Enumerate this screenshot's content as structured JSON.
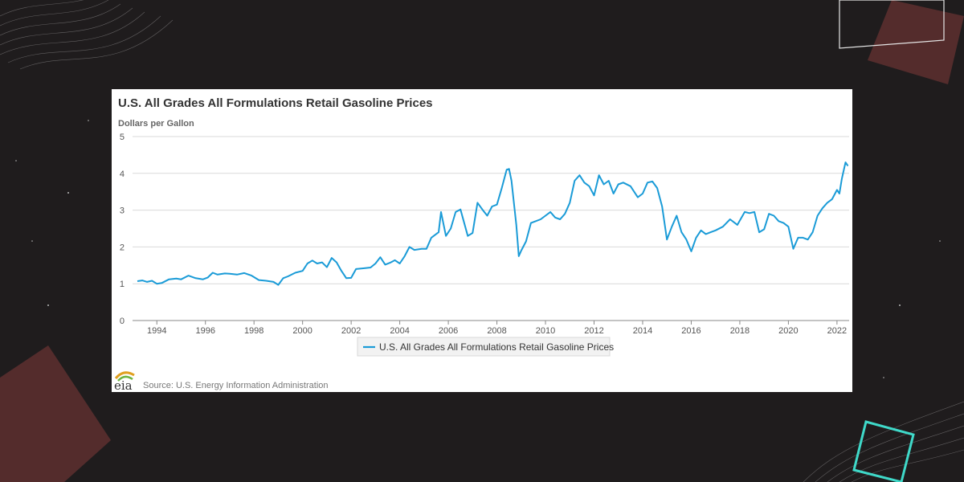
{
  "colors": {
    "background": "#1f1c1d",
    "series": "#1a9bd7",
    "accent_square": "#5a2f2f",
    "teal_square": "#3fd9c9"
  },
  "footer": {
    "source": "Source: U.S. Energy Information Administration",
    "logo_text": "eia"
  },
  "chart_data": {
    "type": "line",
    "title": "U.S. All Grades All Formulations Retail Gasoline Prices",
    "ylabel": "Dollars per Gallon",
    "xlabel": "",
    "ylim": [
      0,
      5
    ],
    "xlim": [
      1993.0,
      2022.5
    ],
    "yticks": [
      "0",
      "1",
      "2",
      "3",
      "4",
      "5"
    ],
    "xticks": [
      "1994",
      "1996",
      "1998",
      "2000",
      "2002",
      "2004",
      "2006",
      "2008",
      "2010",
      "2012",
      "2014",
      "2016",
      "2018",
      "2020",
      "2022"
    ],
    "grid": true,
    "legend": "bottom-center",
    "series": [
      {
        "name": "U.S. All Grades All Formulations Retail Gasoline Prices",
        "x": [
          1993.2,
          1993.4,
          1993.6,
          1993.8,
          1994.0,
          1994.2,
          1994.5,
          1994.8,
          1995.0,
          1995.3,
          1995.6,
          1995.9,
          1996.1,
          1996.3,
          1996.5,
          1996.8,
          1997.0,
          1997.3,
          1997.6,
          1997.9,
          1998.2,
          1998.5,
          1998.8,
          1999.0,
          1999.2,
          1999.4,
          1999.7,
          2000.0,
          2000.2,
          2000.4,
          2000.6,
          2000.8,
          2001.0,
          2001.2,
          2001.4,
          2001.6,
          2001.8,
          2002.0,
          2002.2,
          2002.5,
          2002.8,
          2003.0,
          2003.2,
          2003.4,
          2003.6,
          2003.8,
          2004.0,
          2004.2,
          2004.4,
          2004.6,
          2004.9,
          2005.1,
          2005.3,
          2005.6,
          2005.7,
          2005.9,
          2006.1,
          2006.3,
          2006.5,
          2006.8,
          2007.0,
          2007.2,
          2007.4,
          2007.6,
          2007.8,
          2008.0,
          2008.2,
          2008.4,
          2008.5,
          2008.6,
          2008.8,
          2008.9,
          2009.0,
          2009.2,
          2009.4,
          2009.6,
          2009.8,
          2010.0,
          2010.2,
          2010.4,
          2010.6,
          2010.8,
          2011.0,
          2011.2,
          2011.4,
          2011.6,
          2011.8,
          2012.0,
          2012.2,
          2012.4,
          2012.6,
          2012.8,
          2013.0,
          2013.2,
          2013.5,
          2013.8,
          2014.0,
          2014.2,
          2014.4,
          2014.6,
          2014.8,
          2015.0,
          2015.2,
          2015.4,
          2015.6,
          2015.8,
          2016.0,
          2016.2,
          2016.4,
          2016.6,
          2016.8,
          2017.0,
          2017.3,
          2017.6,
          2017.9,
          2018.2,
          2018.4,
          2018.6,
          2018.8,
          2019.0,
          2019.2,
          2019.4,
          2019.6,
          2019.8,
          2020.0,
          2020.2,
          2020.4,
          2020.6,
          2020.8,
          2021.0,
          2021.2,
          2021.4,
          2021.6,
          2021.8,
          2022.0,
          2022.1,
          2022.2,
          2022.35,
          2022.45
        ],
        "values": [
          1.07,
          1.09,
          1.05,
          1.08,
          1.0,
          1.02,
          1.12,
          1.14,
          1.12,
          1.22,
          1.15,
          1.12,
          1.17,
          1.3,
          1.25,
          1.28,
          1.27,
          1.25,
          1.29,
          1.22,
          1.1,
          1.08,
          1.05,
          0.97,
          1.15,
          1.2,
          1.3,
          1.35,
          1.55,
          1.63,
          1.55,
          1.58,
          1.45,
          1.7,
          1.58,
          1.35,
          1.15,
          1.16,
          1.4,
          1.42,
          1.44,
          1.55,
          1.72,
          1.52,
          1.57,
          1.64,
          1.55,
          1.75,
          2.0,
          1.92,
          1.95,
          1.95,
          2.25,
          2.4,
          2.95,
          2.3,
          2.5,
          2.95,
          3.02,
          2.3,
          2.38,
          3.2,
          3.02,
          2.85,
          3.1,
          3.15,
          3.6,
          4.1,
          4.12,
          3.8,
          2.6,
          1.75,
          1.9,
          2.15,
          2.65,
          2.7,
          2.75,
          2.85,
          2.95,
          2.8,
          2.75,
          2.9,
          3.2,
          3.8,
          3.95,
          3.75,
          3.65,
          3.4,
          3.95,
          3.7,
          3.8,
          3.45,
          3.7,
          3.75,
          3.65,
          3.35,
          3.45,
          3.75,
          3.78,
          3.6,
          3.1,
          2.2,
          2.55,
          2.85,
          2.4,
          2.2,
          1.88,
          2.25,
          2.45,
          2.35,
          2.4,
          2.45,
          2.55,
          2.75,
          2.6,
          2.95,
          2.92,
          2.95,
          2.4,
          2.48,
          2.9,
          2.85,
          2.7,
          2.65,
          2.55,
          1.95,
          2.25,
          2.25,
          2.2,
          2.4,
          2.85,
          3.05,
          3.2,
          3.3,
          3.55,
          3.45,
          3.85,
          4.3,
          4.2
        ]
      }
    ]
  }
}
